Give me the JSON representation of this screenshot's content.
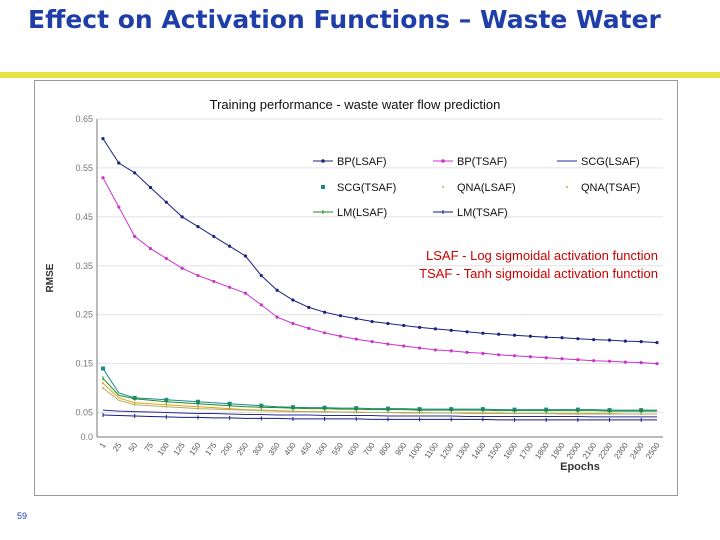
{
  "slide": {
    "title": "Effect on Activation Functions – Waste Water",
    "number": "59"
  },
  "chart_data": {
    "type": "line",
    "title": "Training performance - waste water flow prediction",
    "xlabel": "Epochs",
    "ylabel": "RMSE",
    "ylim": [
      0.0,
      0.65
    ],
    "yticks": [
      {
        "value": 0.0,
        "label": "0.0"
      },
      {
        "value": 0.05,
        "label": "0.05"
      },
      {
        "value": 0.15,
        "label": "0.15"
      },
      {
        "value": 0.25,
        "label": "0.25"
      },
      {
        "value": 0.35,
        "label": "0.35"
      },
      {
        "value": 0.45,
        "label": "0.45"
      },
      {
        "value": 0.55,
        "label": "0.55"
      },
      {
        "value": 0.65,
        "label": "0.65"
      }
    ],
    "categories": [
      "1",
      "25",
      "50",
      "75",
      "100",
      "125",
      "150",
      "175",
      "200",
      "250",
      "300",
      "350",
      "400",
      "450",
      "500",
      "550",
      "600",
      "700",
      "800",
      "900",
      "1000",
      "1100",
      "1200",
      "1300",
      "1400",
      "1500",
      "1600",
      "1700",
      "1800",
      "1900",
      "2000",
      "2100",
      "2200",
      "2300",
      "2400",
      "2500"
    ],
    "series": [
      {
        "name": "BP(LSAF)",
        "color": "#1a237e",
        "marker": "dot",
        "values": [
          0.61,
          0.56,
          0.54,
          0.51,
          0.48,
          0.45,
          0.43,
          0.41,
          0.39,
          0.37,
          0.33,
          0.3,
          0.28,
          0.265,
          0.255,
          0.248,
          0.242,
          0.236,
          0.232,
          0.228,
          0.224,
          0.221,
          0.218,
          0.215,
          0.212,
          0.21,
          0.208,
          0.206,
          0.204,
          0.203,
          0.201,
          0.199,
          0.198,
          0.196,
          0.195,
          0.193
        ]
      },
      {
        "name": "BP(TSAF)",
        "color": "#cc33cc",
        "marker": "dot",
        "values": [
          0.53,
          0.47,
          0.41,
          0.385,
          0.365,
          0.345,
          0.33,
          0.318,
          0.306,
          0.294,
          0.27,
          0.245,
          0.232,
          0.222,
          0.213,
          0.206,
          0.2,
          0.195,
          0.19,
          0.186,
          0.182,
          0.178,
          0.176,
          0.173,
          0.171,
          0.168,
          0.166,
          0.164,
          0.162,
          0.16,
          0.158,
          0.156,
          0.155,
          0.153,
          0.152,
          0.15
        ]
      },
      {
        "name": "SCG(LSAF)",
        "color": "#2a2a9a",
        "marker": "none",
        "values": [
          0.055,
          0.053,
          0.052,
          0.051,
          0.05,
          0.049,
          0.048,
          0.048,
          0.047,
          0.046,
          0.046,
          0.045,
          0.045,
          0.045,
          0.044,
          0.044,
          0.044,
          0.044,
          0.043,
          0.043,
          0.043,
          0.043,
          0.043,
          0.042,
          0.042,
          0.042,
          0.042,
          0.042,
          0.042,
          0.042,
          0.042,
          0.041,
          0.041,
          0.041,
          0.041,
          0.041
        ]
      },
      {
        "name": "SCG(TSAF)",
        "color": "#1a8a8a",
        "marker": "square",
        "values": [
          0.14,
          0.09,
          0.08,
          0.078,
          0.076,
          0.074,
          0.072,
          0.07,
          0.068,
          0.066,
          0.064,
          0.062,
          0.061,
          0.06,
          0.06,
          0.059,
          0.059,
          0.058,
          0.058,
          0.058,
          0.057,
          0.057,
          0.057,
          0.057,
          0.057,
          0.056,
          0.056,
          0.056,
          0.056,
          0.056,
          0.056,
          0.056,
          0.055,
          0.055,
          0.055,
          0.055
        ]
      },
      {
        "name": "QNA(LSAF)",
        "color": "#e0a020",
        "marker": "small-dot",
        "values": [
          0.11,
          0.08,
          0.07,
          0.068,
          0.066,
          0.064,
          0.062,
          0.06,
          0.058,
          0.056,
          0.055,
          0.054,
          0.053,
          0.052,
          0.052,
          0.051,
          0.051,
          0.05,
          0.05,
          0.05,
          0.05,
          0.049,
          0.049,
          0.049,
          0.049,
          0.049,
          0.048,
          0.048,
          0.048,
          0.048,
          0.048,
          0.048,
          0.048,
          0.047,
          0.047,
          0.047
        ]
      },
      {
        "name": "QNA(TSAF)",
        "color": "#b0b060",
        "marker": "small-dot",
        "values": [
          0.1,
          0.075,
          0.066,
          0.064,
          0.062,
          0.06,
          0.058,
          0.057,
          0.056,
          0.055,
          0.054,
          0.053,
          0.052,
          0.052,
          0.051,
          0.051,
          0.05,
          0.05,
          0.05,
          0.049,
          0.049,
          0.049,
          0.049,
          0.048,
          0.048,
          0.048,
          0.048,
          0.048,
          0.048,
          0.047,
          0.047,
          0.047,
          0.047,
          0.047,
          0.047,
          0.047
        ]
      },
      {
        "name": "LM(LSAF)",
        "color": "#228b22",
        "marker": "tick",
        "values": [
          0.12,
          0.085,
          0.078,
          0.075,
          0.072,
          0.07,
          0.068,
          0.066,
          0.064,
          0.062,
          0.061,
          0.06,
          0.059,
          0.058,
          0.058,
          0.057,
          0.057,
          0.056,
          0.056,
          0.056,
          0.055,
          0.055,
          0.055,
          0.055,
          0.055,
          0.054,
          0.054,
          0.054,
          0.054,
          0.054,
          0.054,
          0.054,
          0.053,
          0.053,
          0.053,
          0.053
        ]
      },
      {
        "name": "LM(TSAF)",
        "color": "#1a1a8a",
        "marker": "tick",
        "values": [
          0.045,
          0.044,
          0.043,
          0.042,
          0.041,
          0.04,
          0.04,
          0.039,
          0.039,
          0.038,
          0.038,
          0.038,
          0.037,
          0.037,
          0.037,
          0.037,
          0.037,
          0.036,
          0.036,
          0.036,
          0.036,
          0.036,
          0.036,
          0.036,
          0.036,
          0.035,
          0.035,
          0.035,
          0.035,
          0.035,
          0.035,
          0.035,
          0.035,
          0.035,
          0.035,
          0.035
        ]
      }
    ],
    "annotations": [
      "LSAF - Log sigmoidal activation function",
      "TSAF - Tanh sigmoidal activation function"
    ],
    "legend_position": "top-right"
  }
}
